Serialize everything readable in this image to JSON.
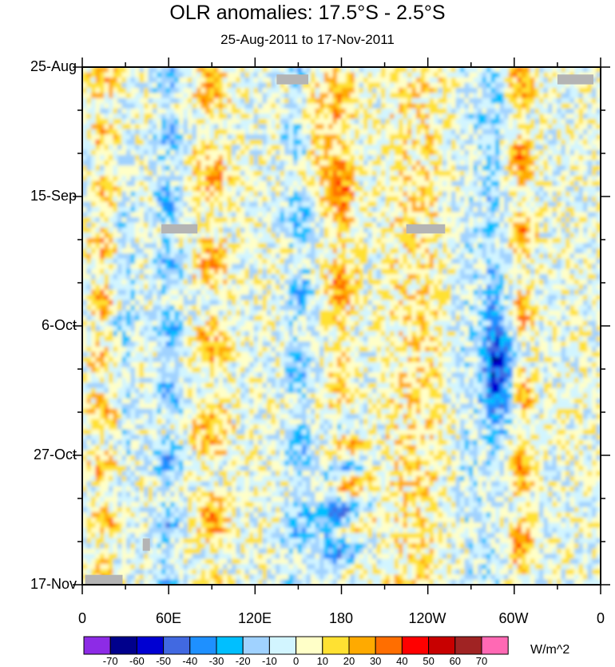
{
  "chart_data": {
    "type": "heatmap",
    "title": "OLR anomalies: 17.5°S - 2.5°S",
    "subtitle": "25-Aug-2011 to 17-Nov-2011",
    "x_ticks": [
      "0",
      "60E",
      "120E",
      "180",
      "120W",
      "60W",
      "0"
    ],
    "x_lon_range": [
      0,
      360
    ],
    "y_ticks": [
      "25-Aug",
      "15-Sep",
      "6-Oct",
      "27-Oct",
      "17-Nov"
    ],
    "y_day_range": [
      0,
      84
    ],
    "colorbar_levels": [
      "-70",
      "-60",
      "-50",
      "-40",
      "-30",
      "-20",
      "-10",
      "0",
      "10",
      "20",
      "30",
      "40",
      "50",
      "60",
      "70"
    ],
    "colorbar_colors": [
      "#8d2be6",
      "#00008c",
      "#0000d2",
      "#4169e1",
      "#1e90ff",
      "#00bfff",
      "#a0d2ff",
      "#d2f5ff",
      "#ffffc8",
      "#ffe132",
      "#ffaa00",
      "#ff6e00",
      "#ff0000",
      "#c80000",
      "#a02323",
      "#ff69b4"
    ],
    "units": "W/m^2",
    "features": [
      {
        "description": "positive band",
        "lon_center": 90,
        "day_start": 0,
        "day_end": 84
      },
      {
        "description": "negative band",
        "lon_center": 60,
        "day_start": 0,
        "day_end": 84
      },
      {
        "description": "negative band",
        "lon_center": 150,
        "day_start": 0,
        "day_end": 84
      },
      {
        "description": "strong positive band",
        "lon_center": 180,
        "day_start": 0,
        "day_end": 60
      },
      {
        "description": "strong negative patch",
        "lon_center": 290,
        "day_start": 40,
        "day_end": 57
      },
      {
        "description": "positive band",
        "lon_center": 305,
        "day_start": 0,
        "day_end": 84
      }
    ]
  }
}
